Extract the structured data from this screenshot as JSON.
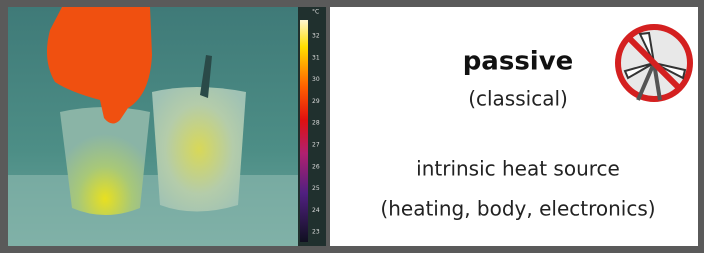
{
  "thermal_image": {
    "scale": {
      "unit": "°C",
      "ticks": [
        "32",
        "31",
        "30",
        "29",
        "28",
        "27",
        "26",
        "25",
        "24",
        "23"
      ]
    }
  },
  "panel": {
    "title": "passive",
    "subtitle": "(classical)",
    "description": "intrinsic heat source",
    "examples": "(heating, body, electronics)"
  }
}
